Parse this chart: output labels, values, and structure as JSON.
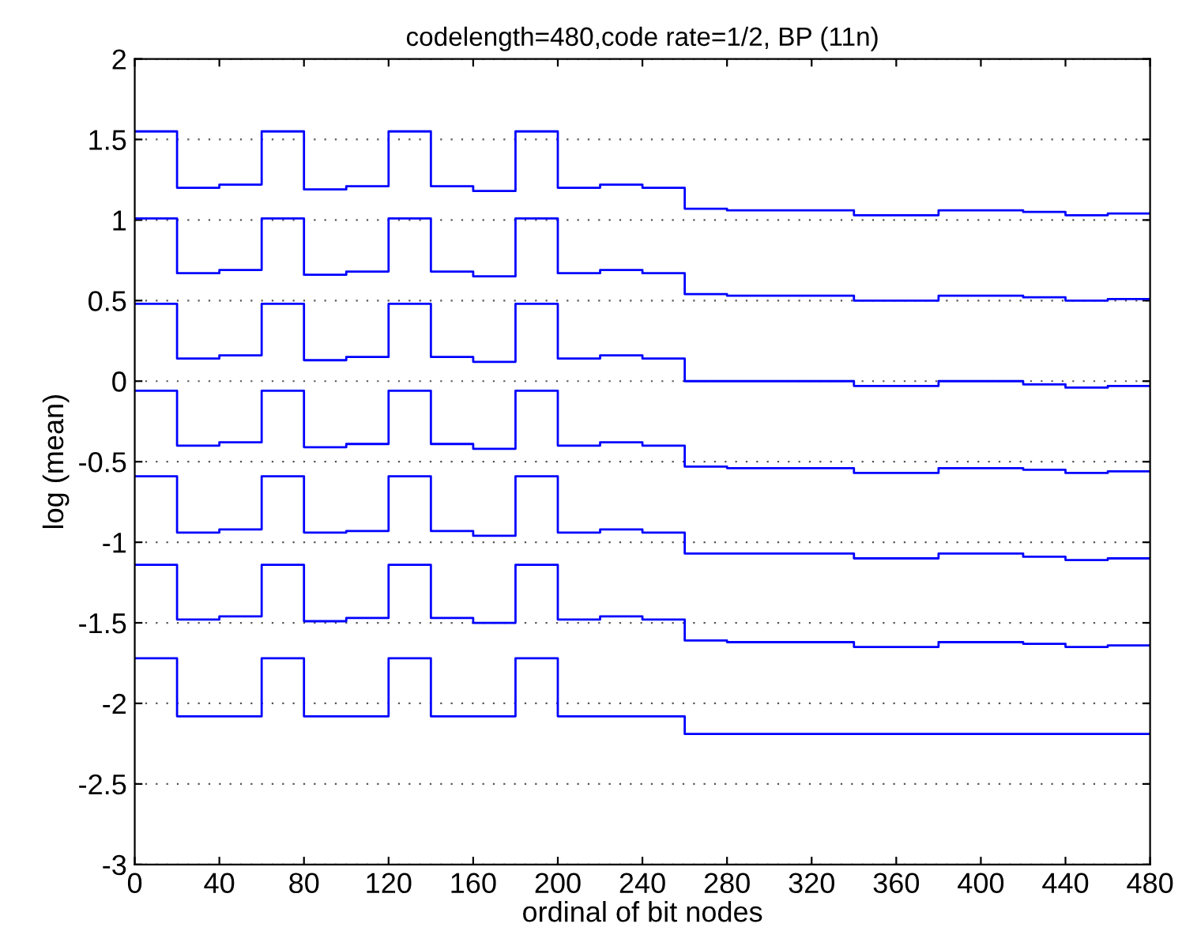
{
  "chart_data": {
    "type": "step",
    "title": "codelength=480,code rate=1/2, BP (11n)",
    "xlabel": "ordinal of bit nodes",
    "ylabel": "log (mean)",
    "x": [
      0,
      20,
      40,
      60,
      80,
      100,
      120,
      140,
      160,
      180,
      200,
      220,
      240,
      260,
      280,
      300,
      320,
      340,
      360,
      380,
      400,
      420,
      440,
      460,
      480
    ],
    "series": [
      {
        "color": "#0000ff",
        "values": [
          1.55,
          1.2,
          1.22,
          1.55,
          1.19,
          1.21,
          1.55,
          1.21,
          1.18,
          1.55,
          1.2,
          1.22,
          1.2,
          1.07,
          1.06,
          1.06,
          1.06,
          1.03,
          1.03,
          1.06,
          1.06,
          1.05,
          1.03,
          1.04,
          1.04
        ]
      },
      {
        "color": "#0000ff",
        "values": [
          1.01,
          0.67,
          0.69,
          1.01,
          0.66,
          0.68,
          1.01,
          0.68,
          0.65,
          1.01,
          0.67,
          0.69,
          0.67,
          0.54,
          0.53,
          0.53,
          0.53,
          0.5,
          0.5,
          0.53,
          0.53,
          0.52,
          0.5,
          0.51,
          0.51
        ]
      },
      {
        "color": "#0000ff",
        "values": [
          0.48,
          0.14,
          0.16,
          0.48,
          0.13,
          0.15,
          0.48,
          0.15,
          0.12,
          0.48,
          0.14,
          0.16,
          0.14,
          0.0,
          0.0,
          0.0,
          0.0,
          -0.03,
          -0.03,
          0.0,
          0.0,
          -0.02,
          -0.04,
          -0.03,
          -0.03
        ]
      },
      {
        "color": "#0000ff",
        "values": [
          -0.06,
          -0.4,
          -0.38,
          -0.06,
          -0.41,
          -0.39,
          -0.06,
          -0.39,
          -0.42,
          -0.06,
          -0.4,
          -0.38,
          -0.4,
          -0.53,
          -0.54,
          -0.54,
          -0.54,
          -0.57,
          -0.57,
          -0.54,
          -0.54,
          -0.55,
          -0.57,
          -0.56,
          -0.56
        ]
      },
      {
        "color": "#0000ff",
        "values": [
          -0.59,
          -0.94,
          -0.92,
          -0.59,
          -0.94,
          -0.93,
          -0.59,
          -0.93,
          -0.96,
          -0.59,
          -0.94,
          -0.92,
          -0.94,
          -1.07,
          -1.07,
          -1.07,
          -1.07,
          -1.1,
          -1.1,
          -1.07,
          -1.07,
          -1.09,
          -1.11,
          -1.1,
          -1.1
        ]
      },
      {
        "color": "#0000ff",
        "values": [
          -1.14,
          -1.48,
          -1.46,
          -1.14,
          -1.49,
          -1.47,
          -1.14,
          -1.47,
          -1.5,
          -1.14,
          -1.48,
          -1.46,
          -1.48,
          -1.61,
          -1.62,
          -1.62,
          -1.62,
          -1.65,
          -1.65,
          -1.62,
          -1.62,
          -1.63,
          -1.65,
          -1.64,
          -1.64
        ]
      },
      {
        "color": "#0000ff",
        "values": [
          -1.72,
          -2.08,
          -2.08,
          -1.72,
          -2.08,
          -2.08,
          -1.72,
          -2.08,
          -2.08,
          -1.72,
          -2.08,
          -2.08,
          -2.08,
          -2.19,
          -2.19,
          -2.19,
          -2.19,
          -2.19,
          -2.19,
          -2.19,
          -2.19,
          -2.19,
          -2.19,
          -2.19,
          -2.19
        ]
      }
    ],
    "xlim": [
      0,
      480
    ],
    "xticks": [
      0,
      40,
      80,
      120,
      160,
      200,
      240,
      280,
      320,
      360,
      400,
      440,
      480
    ],
    "ylim": [
      -3,
      2
    ],
    "yticks": [
      -3,
      -2.5,
      -2,
      -1.5,
      -1,
      -0.5,
      0,
      0.5,
      1,
      1.5,
      2
    ],
    "grid": "y",
    "marker": "none",
    "line_style": "solid"
  }
}
